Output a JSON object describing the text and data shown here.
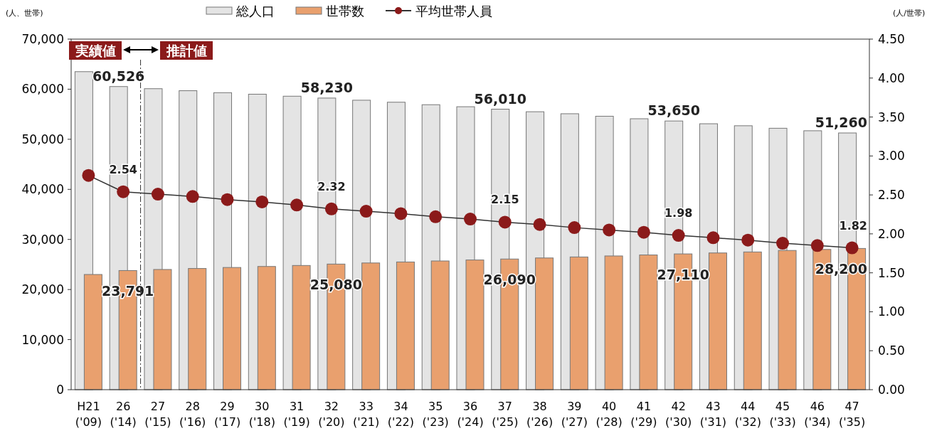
{
  "chart_data": {
    "type": "bar",
    "categories": [
      "H21\n('09)",
      "26\n('14)",
      "27\n('15)",
      "28\n('16)",
      "29\n('17)",
      "30\n('18)",
      "31\n('19)",
      "32\n('20)",
      "33\n('21)",
      "34\n('22)",
      "35\n('23)",
      "36\n('24)",
      "37\n('25)",
      "38\n('26)",
      "39\n('27)",
      "40\n('28)",
      "41\n('29)",
      "42\n('30)",
      "43\n('31)",
      "44\n('32)",
      "45\n('33)",
      "46\n('34)",
      "47\n('35)"
    ],
    "series": [
      {
        "name": "総人口",
        "color": "#e4e4e4",
        "values": [
          63500,
          60526,
          60100,
          59700,
          59300,
          59000,
          58600,
          58230,
          57800,
          57400,
          56900,
          56500,
          56010,
          55500,
          55100,
          54600,
          54100,
          53650,
          53100,
          52700,
          52200,
          51700,
          51260
        ],
        "value_labels": [
          null,
          "60,526",
          null,
          null,
          null,
          null,
          null,
          "58,230",
          null,
          null,
          null,
          null,
          "56,010",
          null,
          null,
          null,
          null,
          "53,650",
          null,
          null,
          null,
          null,
          "51,260"
        ]
      },
      {
        "name": "世帯数",
        "color": "#e9a06e",
        "values": [
          23000,
          23791,
          24000,
          24200,
          24400,
          24600,
          24800,
          25080,
          25300,
          25500,
          25700,
          25900,
          26090,
          26300,
          26500,
          26700,
          26900,
          27110,
          27300,
          27500,
          27800,
          28000,
          28200
        ],
        "value_labels": [
          null,
          "23,791",
          null,
          null,
          null,
          null,
          null,
          "25,080",
          null,
          null,
          null,
          null,
          "26,090",
          null,
          null,
          null,
          null,
          "27,110",
          null,
          null,
          null,
          null,
          "28,200"
        ]
      },
      {
        "name": "平均世帯人員",
        "type": "line",
        "axis": "y2",
        "color": "#8b1a1a",
        "values": [
          2.75,
          2.54,
          2.51,
          2.48,
          2.44,
          2.41,
          2.37,
          2.32,
          2.29,
          2.26,
          2.22,
          2.19,
          2.15,
          2.12,
          2.08,
          2.05,
          2.02,
          1.98,
          1.95,
          1.92,
          1.88,
          1.85,
          1.82
        ],
        "value_labels": [
          null,
          "2.54",
          null,
          null,
          null,
          null,
          null,
          "2.32",
          null,
          null,
          null,
          null,
          "2.15",
          null,
          null,
          null,
          null,
          "1.98",
          null,
          null,
          null,
          null,
          "1.82"
        ]
      }
    ],
    "ylabel": "(人、世帯)",
    "y2label": "(人/世帯)",
    "ylim": [
      0,
      70000
    ],
    "yticks": [
      {
        "value": 0,
        "label": "0"
      },
      {
        "value": 10000,
        "label": "10,000"
      },
      {
        "value": 20000,
        "label": "20,000"
      },
      {
        "value": 30000,
        "label": "30,000"
      },
      {
        "value": 40000,
        "label": "40,000"
      },
      {
        "value": 50000,
        "label": "50,000"
      },
      {
        "value": 60000,
        "label": "60,000"
      },
      {
        "value": 70000,
        "label": "70,000"
      }
    ],
    "y2lim": [
      0,
      4.5
    ],
    "y2ticks": [
      {
        "value": 0,
        "label": "0.00"
      },
      {
        "value": 0.5,
        "label": "0.50"
      },
      {
        "value": 1,
        "label": "1.00"
      },
      {
        "value": 1.5,
        "label": "1.50"
      },
      {
        "value": 2,
        "label": "2.00"
      },
      {
        "value": 2.5,
        "label": "2.50"
      },
      {
        "value": 3,
        "label": "3.00"
      },
      {
        "value": 3.5,
        "label": "3.50"
      },
      {
        "value": 4,
        "label": "4.00"
      },
      {
        "value": 4.5,
        "label": "4.50"
      }
    ],
    "annotations": [
      "実績値",
      "推計値"
    ],
    "marker": "circle",
    "grid": false,
    "legend": "top"
  }
}
